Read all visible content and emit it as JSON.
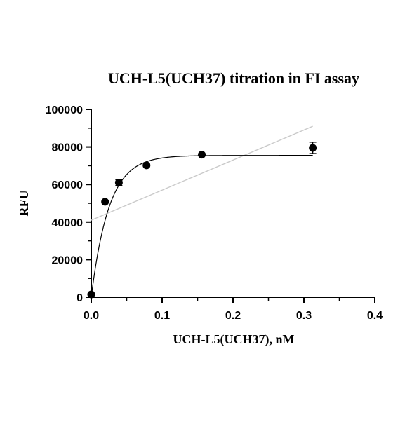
{
  "chart_data": {
    "type": "scatter",
    "title": "UCH-L5(UCH37) titration in FI assay",
    "xlabel": "UCH-L5(UCH37), nM",
    "ylabel": "RFU",
    "xlim": [
      0,
      0.4
    ],
    "ylim": [
      0,
      100000
    ],
    "x_ticks": [
      "0.0",
      "0.1",
      "0.2",
      "0.3",
      "0.4"
    ],
    "y_ticks": [
      "0",
      "20000",
      "40000",
      "60000",
      "80000",
      "100000"
    ],
    "grid": false,
    "legend": "none",
    "series": [
      {
        "points": [
          {
            "x": 0.0,
            "y": 1500,
            "err": 0
          },
          {
            "x": 0.0195,
            "y": 50800,
            "err": 700
          },
          {
            "x": 0.039,
            "y": 61000,
            "err": 1500
          },
          {
            "x": 0.078,
            "y": 70200,
            "err": 700
          },
          {
            "x": 0.156,
            "y": 75900,
            "err": 700
          },
          {
            "x": 0.3125,
            "y": 79500,
            "err": 3000
          }
        ],
        "color": "#000000"
      }
    ],
    "fit_curve": {
      "model": "one-phase association",
      "y0": 0,
      "plateau": 75500,
      "k": 40,
      "x_range": [
        0,
        0.3125
      ],
      "color": "#000000"
    },
    "linear_fit": {
      "slope": 160000,
      "intercept": 41000,
      "x_range": [
        0.0,
        0.3125
      ],
      "color": "#c8c8c8"
    }
  }
}
